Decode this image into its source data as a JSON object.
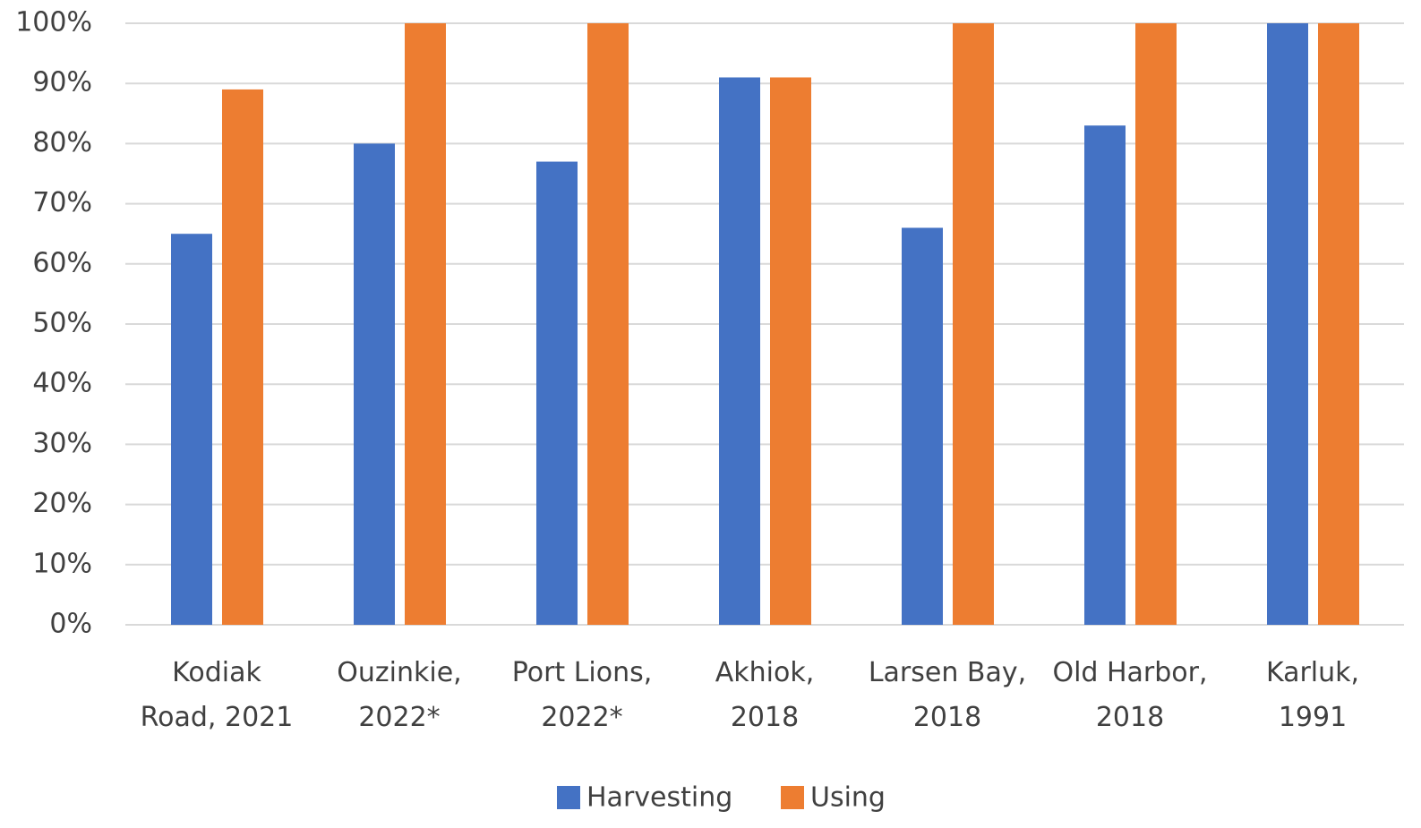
{
  "chart_data": {
    "type": "bar",
    "categories": [
      "Kodiak\nRoad, 2021",
      "Ouzinkie,\n2022*",
      "Port Lions,\n2022*",
      "Akhiok,\n2018",
      "Larsen Bay,\n2018",
      "Old Harbor,\n2018",
      "Karluk,\n1991"
    ],
    "series": [
      {
        "name": "Harvesting",
        "color": "#4472c4",
        "values": [
          65,
          80,
          77,
          91,
          66,
          83,
          100
        ]
      },
      {
        "name": "Using",
        "color": "#ed7d31",
        "values": [
          89,
          100,
          100,
          91,
          100,
          100,
          100
        ]
      }
    ],
    "ylim": [
      0,
      100
    ],
    "yticks": [
      {
        "value": 0,
        "label": "0%"
      },
      {
        "value": 10,
        "label": "10%"
      },
      {
        "value": 20,
        "label": "20%"
      },
      {
        "value": 30,
        "label": "30%"
      },
      {
        "value": 40,
        "label": "40%"
      },
      {
        "value": 50,
        "label": "50%"
      },
      {
        "value": 60,
        "label": "60%"
      },
      {
        "value": 70,
        "label": "70%"
      },
      {
        "value": 80,
        "label": "80%"
      },
      {
        "value": 90,
        "label": "90%"
      },
      {
        "value": 100,
        "label": "100%"
      }
    ],
    "grid": true,
    "legend": "bottom"
  }
}
